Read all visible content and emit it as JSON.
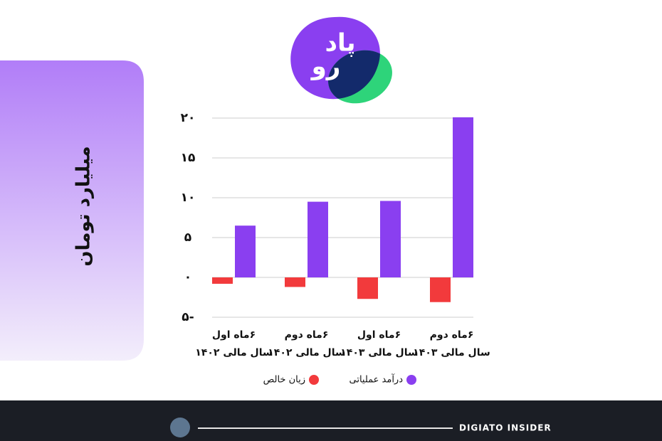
{
  "logo": [
    "پاد",
    "رو"
  ],
  "footer": "DIGIATO INSIDER",
  "chart_data": {
    "type": "bar",
    "ylabel": "میلیارد تومان",
    "categories": [
      [
        "۶ماه اول",
        "سال مالی ۱۴۰۲"
      ],
      [
        "۶ماه دوم",
        "سال مالی ۱۴۰۲"
      ],
      [
        "۶ماه اول",
        "سال مالی ۱۴۰۳"
      ],
      [
        "۶ماه دوم",
        "سال مالی ۱۴۰۳"
      ]
    ],
    "series": [
      {
        "name": "زیان خالص",
        "color": "#f23a3c",
        "values": [
          -0.8,
          -1.2,
          -2.7,
          -3.1
        ]
      },
      {
        "name": "درآمد عملیاتی",
        "color": "#8a3ff0",
        "values": [
          6.5,
          9.5,
          9.6,
          20.1
        ]
      }
    ],
    "ylim": [
      -5,
      20
    ],
    "yticks": [
      {
        "value": -5,
        "label": "-۵"
      },
      {
        "value": 0,
        "label": "۰"
      },
      {
        "value": 5,
        "label": "۵"
      },
      {
        "value": 10,
        "label": "۱۰"
      },
      {
        "value": 15,
        "label": "۱۵"
      },
      {
        "value": 20,
        "label": "۲۰"
      }
    ],
    "grid": true
  }
}
